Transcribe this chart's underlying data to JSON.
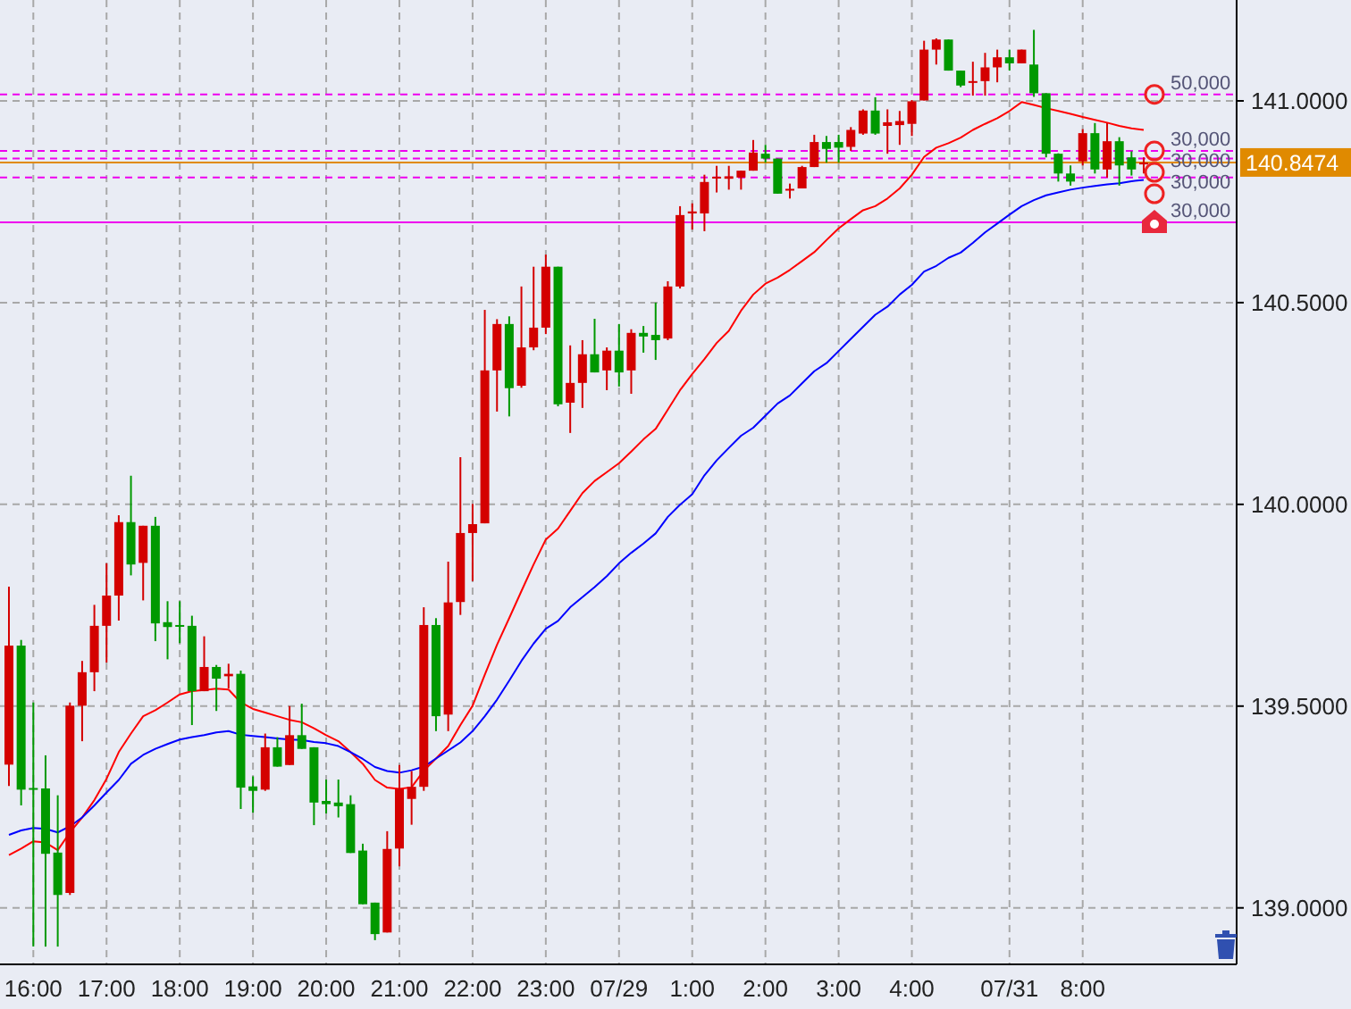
{
  "chart_data": {
    "type": "candlestick",
    "categories": [
      null,
      null,
      "16:00",
      null,
      null,
      null,
      null,
      null,
      "17:00",
      null,
      null,
      null,
      null,
      null,
      "18:00",
      null,
      null,
      null,
      null,
      null,
      "19:00",
      null,
      null,
      null,
      null,
      null,
      "20:00",
      null,
      null,
      null,
      null,
      null,
      "21:00",
      null,
      null,
      null,
      null,
      null,
      "22:00",
      null,
      null,
      null,
      null,
      null,
      "23:00",
      null,
      null,
      null,
      null,
      null,
      "07/29",
      null,
      null,
      null,
      null,
      null,
      "1:00",
      null,
      null,
      null,
      null,
      null,
      "2:00",
      null,
      null,
      null,
      null,
      null,
      "3:00",
      null,
      null,
      null,
      null,
      null,
      "4:00",
      null,
      null,
      null,
      null,
      null,
      null,
      null,
      "07/31",
      null,
      null,
      null,
      null,
      null,
      "8:00",
      null,
      null,
      null,
      null,
      null
    ],
    "ohlc": [
      [
        139.355,
        139.796,
        139.302,
        139.65
      ],
      [
        139.65,
        139.664,
        139.254,
        139.293
      ],
      [
        139.297,
        139.509,
        138.904,
        139.294
      ],
      [
        139.296,
        139.378,
        138.904,
        139.134
      ],
      [
        139.137,
        139.279,
        138.904,
        139.032
      ],
      [
        139.037,
        139.509,
        139.032,
        139.501
      ],
      [
        139.501,
        139.612,
        139.413,
        139.584
      ],
      [
        139.584,
        139.751,
        139.537,
        139.699
      ],
      [
        139.699,
        139.854,
        139.608,
        139.774
      ],
      [
        139.774,
        139.973,
        139.712,
        139.956
      ],
      [
        139.956,
        140.071,
        139.824,
        139.851
      ],
      [
        139.855,
        139.947,
        139.762,
        139.947
      ],
      [
        139.947,
        139.969,
        139.661,
        139.705
      ],
      [
        139.708,
        139.76,
        139.616,
        139.696
      ],
      [
        139.701,
        139.76,
        139.656,
        139.7
      ],
      [
        139.699,
        139.724,
        139.453,
        139.537
      ],
      [
        139.537,
        139.673,
        139.537,
        139.597
      ],
      [
        139.597,
        139.602,
        139.488,
        139.568
      ],
      [
        139.574,
        139.605,
        139.544,
        139.58
      ],
      [
        139.58,
        139.588,
        139.245,
        139.298
      ],
      [
        139.301,
        139.326,
        139.236,
        139.29
      ],
      [
        139.293,
        139.432,
        139.29,
        139.398
      ],
      [
        139.398,
        139.423,
        139.35,
        139.35
      ],
      [
        139.354,
        139.5,
        139.354,
        139.428
      ],
      [
        139.428,
        139.506,
        139.394,
        139.394
      ],
      [
        139.398,
        139.398,
        139.205,
        139.261
      ],
      [
        139.265,
        139.318,
        139.234,
        139.257
      ],
      [
        139.261,
        139.318,
        139.224,
        139.252
      ],
      [
        139.257,
        139.279,
        139.136,
        139.136
      ],
      [
        139.142,
        139.159,
        139.009,
        139.009
      ],
      [
        139.013,
        139.013,
        138.92,
        138.935
      ],
      [
        138.939,
        139.19,
        138.939,
        139.146
      ],
      [
        139.147,
        139.354,
        139.103,
        139.295
      ],
      [
        139.27,
        139.339,
        139.206,
        139.3
      ],
      [
        139.3,
        139.745,
        139.29,
        139.701
      ],
      [
        139.701,
        139.718,
        139.438,
        139.475
      ],
      [
        139.479,
        139.858,
        139.438,
        139.757
      ],
      [
        139.758,
        140.117,
        139.726,
        139.929
      ],
      [
        139.929,
        140.001,
        139.81,
        139.951
      ],
      [
        139.953,
        140.482,
        139.953,
        140.332
      ],
      [
        140.332,
        140.459,
        140.23,
        140.447
      ],
      [
        140.447,
        140.466,
        140.218,
        140.288
      ],
      [
        140.294,
        140.54,
        140.289,
        140.389
      ],
      [
        140.389,
        140.589,
        140.382,
        140.438
      ],
      [
        140.438,
        140.619,
        140.422,
        140.589
      ],
      [
        140.589,
        140.589,
        140.243,
        140.248
      ],
      [
        140.252,
        140.394,
        140.177,
        140.301
      ],
      [
        140.301,
        140.407,
        140.239,
        140.372
      ],
      [
        140.372,
        140.46,
        140.327,
        140.327
      ],
      [
        140.332,
        140.389,
        140.283,
        140.381
      ],
      [
        140.381,
        140.447,
        140.292,
        140.327
      ],
      [
        140.332,
        140.434,
        140.274,
        140.425
      ],
      [
        140.425,
        140.442,
        140.376,
        140.416
      ],
      [
        140.42,
        140.5,
        140.358,
        140.407
      ],
      [
        140.411,
        140.553,
        140.407,
        140.54
      ],
      [
        140.54,
        140.739,
        140.535,
        140.717
      ],
      [
        140.721,
        140.746,
        140.681,
        140.726
      ],
      [
        140.721,
        140.817,
        140.677,
        140.799
      ],
      [
        140.81,
        140.839,
        140.773,
        140.812
      ],
      [
        140.807,
        140.839,
        140.78,
        140.813
      ],
      [
        140.81,
        140.827,
        140.78,
        140.827
      ],
      [
        140.827,
        140.903,
        140.827,
        140.872
      ],
      [
        140.869,
        140.891,
        140.847,
        140.857
      ],
      [
        140.857,
        140.857,
        140.77,
        140.77
      ],
      [
        140.778,
        140.795,
        140.758,
        140.782
      ],
      [
        140.783,
        140.839,
        140.783,
        140.836
      ],
      [
        140.836,
        140.916,
        140.836,
        140.898
      ],
      [
        140.898,
        140.913,
        140.847,
        140.881
      ],
      [
        140.898,
        140.916,
        140.847,
        140.884
      ],
      [
        140.886,
        140.935,
        140.876,
        140.928
      ],
      [
        140.919,
        140.979,
        140.916,
        140.976
      ],
      [
        140.976,
        141.009,
        140.916,
        140.919
      ],
      [
        140.938,
        140.979,
        140.869,
        140.947
      ],
      [
        140.94,
        140.975,
        140.891,
        140.95
      ],
      [
        140.943,
        141.002,
        140.913,
        140.999
      ],
      [
        141.001,
        141.149,
        141.001,
        141.127
      ],
      [
        141.127,
        141.155,
        141.09,
        141.152
      ],
      [
        141.152,
        141.152,
        141.075,
        141.075
      ],
      [
        141.075,
        141.075,
        141.034,
        141.038
      ],
      [
        141.045,
        141.097,
        141.013,
        141.049
      ],
      [
        141.049,
        141.119,
        141.013,
        141.083
      ],
      [
        141.083,
        141.127,
        141.046,
        141.108
      ],
      [
        141.108,
        141.127,
        141.075,
        141.093
      ],
      [
        141.093,
        141.127,
        141.093,
        141.127
      ],
      [
        141.09,
        141.176,
        141.01,
        141.019
      ],
      [
        141.019,
        141.019,
        140.86,
        140.869
      ],
      [
        140.869,
        140.87,
        140.8,
        140.82
      ],
      [
        140.82,
        140.84,
        140.79,
        140.8
      ],
      [
        140.85,
        140.93,
        140.84,
        140.92
      ],
      [
        140.92,
        140.945,
        140.82,
        140.83
      ],
      [
        140.83,
        140.945,
        140.81,
        140.9
      ],
      [
        140.9,
        140.91,
        140.79,
        140.84
      ],
      [
        140.86,
        140.875,
        140.815,
        140.83
      ],
      [
        140.845,
        140.86,
        140.82,
        140.847
      ]
    ],
    "colors": [
      "#d40000",
      "#009900",
      "#009900",
      "#009900",
      "#009900",
      "#d40000",
      "#d40000",
      "#d40000",
      "#d40000",
      "#d40000",
      "#009900",
      "#d40000",
      "#009900",
      "#009900",
      "#009900",
      "#009900",
      "#d40000",
      "#009900",
      "#d40000",
      "#009900",
      "#009900",
      "#d40000",
      "#009900",
      "#d40000",
      "#009900",
      "#009900",
      "#009900",
      "#009900",
      "#009900",
      "#009900",
      "#009900",
      "#d40000",
      "#d40000",
      "#d40000",
      "#d40000",
      "#009900",
      "#d40000",
      "#d40000",
      "#d40000",
      "#d40000",
      "#d40000",
      "#009900",
      "#d40000",
      "#d40000",
      "#d40000",
      "#009900",
      "#d40000",
      "#d40000",
      "#009900",
      "#d40000",
      "#009900",
      "#d40000",
      "#009900",
      "#009900",
      "#d40000",
      "#d40000",
      "#d40000",
      "#d40000",
      "#d40000",
      "#d40000",
      "#d40000",
      "#d40000",
      "#009900",
      "#009900",
      "#d40000",
      "#d40000",
      "#d40000",
      "#009900",
      "#009900",
      "#d40000",
      "#d40000",
      "#009900",
      "#d40000",
      "#d40000",
      "#d40000",
      "#d40000",
      "#d40000",
      "#009900",
      "#009900",
      "#d40000",
      "#d40000",
      "#d40000",
      "#009900",
      "#d40000",
      "#009900",
      "#009900",
      "#009900",
      "#009900",
      "#d40000",
      "#009900",
      "#d40000",
      "#009900",
      "#009900",
      "#d40000"
    ],
    "series": [
      {
        "type": "line",
        "color": "#ff0000",
        "values": [
          139.131,
          139.147,
          139.165,
          139.162,
          139.143,
          139.187,
          139.224,
          139.267,
          139.32,
          139.386,
          139.432,
          139.475,
          139.49,
          139.509,
          139.529,
          139.537,
          139.54,
          139.543,
          139.541,
          139.509,
          139.493,
          139.484,
          139.475,
          139.466,
          139.46,
          139.445,
          139.428,
          139.413,
          139.386,
          139.357,
          139.317,
          139.298,
          139.295,
          139.299,
          139.34,
          139.37,
          139.401,
          139.453,
          139.501,
          139.578,
          139.652,
          139.718,
          139.785,
          139.851,
          139.913,
          139.94,
          139.984,
          140.028,
          140.058,
          140.08,
          140.102,
          140.131,
          140.161,
          140.187,
          140.235,
          140.283,
          140.323,
          140.36,
          140.4,
          140.43,
          140.48,
          140.52,
          140.547,
          140.562,
          140.581,
          140.603,
          140.625,
          140.655,
          140.684,
          140.707,
          140.729,
          140.739,
          140.758,
          140.783,
          140.817,
          140.861,
          140.884,
          140.895,
          140.909,
          140.928,
          140.943,
          140.957,
          140.975,
          140.997,
          140.99,
          140.982,
          140.975,
          140.968,
          140.96,
          140.953,
          140.946,
          140.938,
          140.932,
          140.928
        ]
      },
      {
        "type": "line",
        "color": "#0000ff",
        "values": [
          139.181,
          139.192,
          139.198,
          139.196,
          139.187,
          139.202,
          139.224,
          139.254,
          139.286,
          139.317,
          139.357,
          139.379,
          139.394,
          139.406,
          139.417,
          139.423,
          139.428,
          139.435,
          139.438,
          139.429,
          139.426,
          139.423,
          139.42,
          139.417,
          139.416,
          139.411,
          139.408,
          139.401,
          139.386,
          139.369,
          139.349,
          139.339,
          139.335,
          139.341,
          139.35,
          139.37,
          139.39,
          139.41,
          139.438,
          139.475,
          139.516,
          139.563,
          139.612,
          139.655,
          139.692,
          139.711,
          139.745,
          139.77,
          139.795,
          139.822,
          139.854,
          139.88,
          139.903,
          139.928,
          139.969,
          139.999,
          140.025,
          140.072,
          140.109,
          140.14,
          140.17,
          140.19,
          140.22,
          140.25,
          140.27,
          140.3,
          140.33,
          140.35,
          140.38,
          140.41,
          140.44,
          140.47,
          140.49,
          140.52,
          140.544,
          140.577,
          140.591,
          140.611,
          140.624,
          140.648,
          140.674,
          140.696,
          140.718,
          140.739,
          140.754,
          140.766,
          140.773,
          140.78,
          140.785,
          140.789,
          140.793,
          140.796,
          140.801,
          140.804
        ]
      }
    ],
    "ylim": [
      138.86,
      141.25
    ],
    "yticks": [
      {
        "value": 139,
        "label": "139.0000"
      },
      {
        "value": 139.5,
        "label": "139.5000"
      },
      {
        "value": 140,
        "label": "140.0000"
      },
      {
        "value": 140.5,
        "label": "140.5000"
      },
      {
        "value": 141,
        "label": "141.0000"
      }
    ],
    "grid": true,
    "ref_lines": [
      {
        "axis": "y",
        "value": 141.016,
        "color": "#ee00ee",
        "line_style": "dashed"
      },
      {
        "axis": "y",
        "value": 140.876,
        "color": "#ee00ee",
        "line_style": "dashed"
      },
      {
        "axis": "y",
        "value": 140.857,
        "color": "#ee00ee",
        "line_style": "dashed"
      },
      {
        "axis": "y",
        "value": 140.81,
        "color": "#ee00ee",
        "line_style": "dashed"
      },
      {
        "axis": "y",
        "value": 140.699,
        "color": "#ee00ee",
        "line_style": "solid"
      },
      {
        "axis": "y",
        "value": 140.8474,
        "label": "140.8474",
        "color": "#e08a00",
        "line_style": "solid"
      }
    ],
    "annotations": [
      {
        "text": "50,000",
        "y": 141.016
      },
      {
        "text": "30,000",
        "y": 140.876
      },
      {
        "text": "30,000",
        "y": 140.857
      },
      {
        "text": "30,000",
        "y": 140.81
      },
      {
        "text": "30,000",
        "y": 140.699
      }
    ]
  }
}
